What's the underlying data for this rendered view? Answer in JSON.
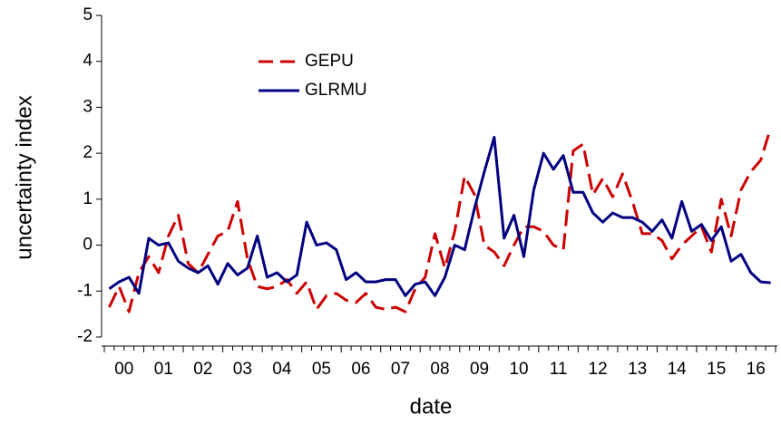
{
  "chart_data": {
    "type": "line",
    "xlabel": "date",
    "ylabel": "uncertainty index",
    "categories": [
      "00",
      null,
      null,
      null,
      "01",
      null,
      null,
      null,
      "02",
      null,
      null,
      null,
      "03",
      null,
      null,
      null,
      "04",
      null,
      null,
      null,
      "05",
      null,
      null,
      null,
      "06",
      null,
      null,
      null,
      "07",
      null,
      null,
      null,
      "08",
      null,
      null,
      null,
      "09",
      null,
      null,
      null,
      "10",
      null,
      null,
      null,
      "11",
      null,
      null,
      null,
      "12",
      null,
      null,
      null,
      "13",
      null,
      null,
      null,
      "14",
      null,
      null,
      null,
      "15",
      null,
      null,
      null,
      "16",
      null,
      null,
      null
    ],
    "series": [
      {
        "name": "GEPU",
        "color": "#cc0000",
        "dashed": true,
        "values": [
          -1.35,
          -0.9,
          -1.45,
          -0.6,
          -0.25,
          -0.6,
          0.2,
          0.65,
          -0.4,
          -0.6,
          -0.2,
          0.2,
          0.3,
          0.95,
          -0.3,
          -0.9,
          -0.95,
          -0.9,
          -0.75,
          -1.05,
          -0.8,
          -1.4,
          -1.1,
          -1.05,
          -1.2,
          -1.25,
          -1.05,
          -1.35,
          -1.4,
          -1.35,
          -1.45,
          -0.95,
          -0.7,
          0.25,
          -0.5,
          0.3,
          1.5,
          1.1,
          0.0,
          -0.15,
          -0.45,
          0.0,
          0.4,
          0.4,
          0.3,
          0.0,
          -0.1,
          2.05,
          2.2,
          1.1,
          1.45,
          1.05,
          1.55,
          0.95,
          0.25,
          0.25,
          0.1,
          -0.3,
          0.0,
          0.2,
          0.4,
          -0.15,
          1.0,
          0.2,
          1.2,
          1.6,
          1.85,
          2.55
        ]
      },
      {
        "name": "GLRMU",
        "color": "#000080",
        "dashed": false,
        "values": [
          -0.95,
          -0.8,
          -0.7,
          -1.05,
          0.15,
          0.0,
          0.05,
          -0.35,
          -0.5,
          -0.6,
          -0.45,
          -0.85,
          -0.4,
          -0.65,
          -0.5,
          0.2,
          -0.7,
          -0.6,
          -0.8,
          -0.65,
          0.5,
          0.0,
          0.05,
          -0.1,
          -0.75,
          -0.6,
          -0.8,
          -0.8,
          -0.75,
          -0.75,
          -1.1,
          -0.85,
          -0.8,
          -1.1,
          -0.7,
          0.0,
          -0.1,
          0.8,
          1.6,
          2.35,
          0.15,
          0.65,
          -0.25,
          1.2,
          2.0,
          1.65,
          1.95,
          1.15,
          1.15,
          0.7,
          0.5,
          0.7,
          0.6,
          0.6,
          0.5,
          0.3,
          0.55,
          0.15,
          0.95,
          0.3,
          0.45,
          0.1,
          0.4,
          -0.35,
          -0.2,
          -0.6,
          -0.8,
          -0.82
        ]
      }
    ],
    "ylim": [
      -2,
      5
    ],
    "yticks": [
      -2,
      -1,
      0,
      1,
      2,
      3,
      4,
      5
    ],
    "grid": false
  }
}
